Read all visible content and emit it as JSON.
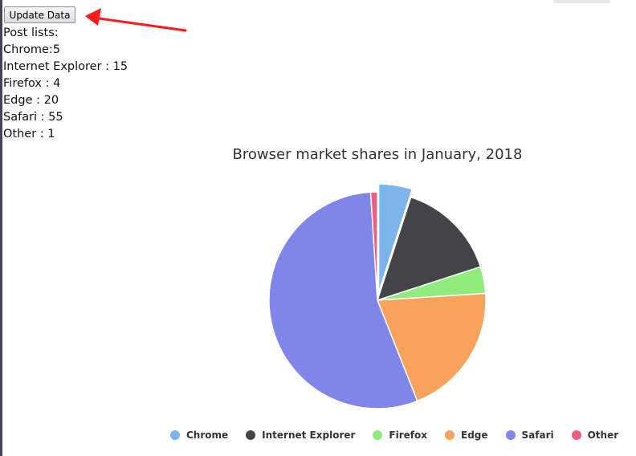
{
  "button": {
    "update_label": "Update Data"
  },
  "post_list": {
    "heading": "Post lists:",
    "lines": [
      "Chrome:5",
      "Internet Explorer : 15",
      "Firefox : 4",
      "Edge : 20",
      "Safari : 55",
      "Other : 1"
    ]
  },
  "colors": {
    "chrome": "#7cb5ec",
    "internet_explorer": "#434348",
    "firefox": "#90ed7d",
    "edge": "#f7a35c",
    "safari": "#8085e9",
    "other": "#f15c80",
    "annotation_arrow": "#ff1a1a"
  },
  "chart_data": {
    "type": "pie",
    "title": "Browser market shares in January, 2018",
    "categories": [
      "Chrome",
      "Internet Explorer",
      "Firefox",
      "Edge",
      "Safari",
      "Other"
    ],
    "values": [
      5,
      15,
      4,
      20,
      55,
      1
    ],
    "sliced": [
      "Chrome"
    ],
    "legend": "bottom-center"
  }
}
